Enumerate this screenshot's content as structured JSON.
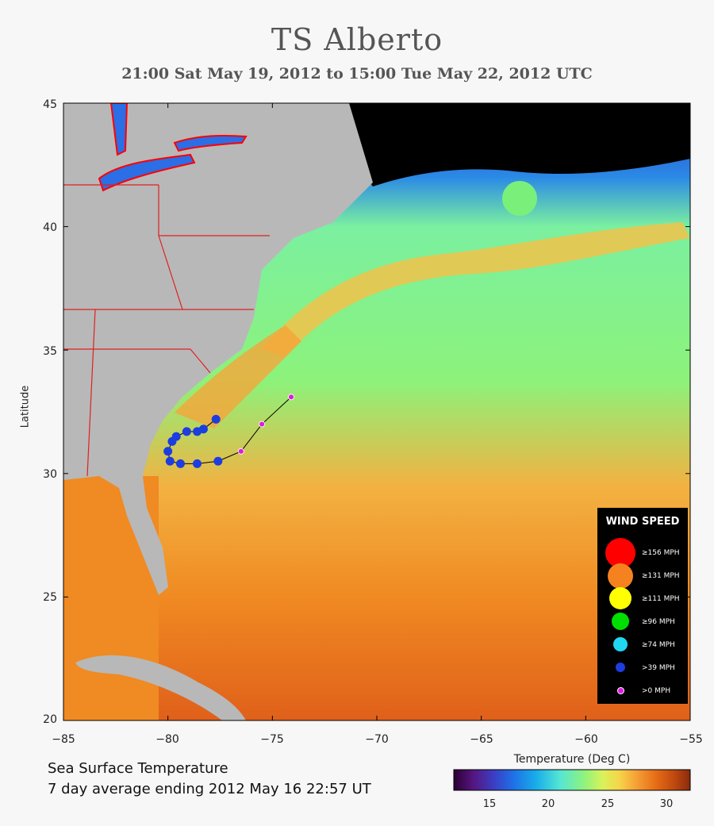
{
  "title": "TS Alberto",
  "subtitle": "21:00 Sat May 19, 2012 to 15:00 Tue May 22, 2012  UTC",
  "axes": {
    "y_label": "Latitude",
    "y_ticks": [
      "45",
      "40",
      "35",
      "30",
      "25",
      "20"
    ],
    "x_ticks": [
      "−85",
      "−80",
      "−75",
      "−70",
      "−65",
      "−60",
      "−55"
    ],
    "lon_range": [
      -85,
      -55
    ],
    "lat_range": [
      20,
      45
    ]
  },
  "footer": {
    "line1": "Sea Surface Temperature",
    "line2": "7 day average ending 2012 May 16 22:57 UT"
  },
  "colorbar": {
    "title": "Temperature (Deg C)",
    "ticks": [
      "15",
      "20",
      "25",
      "30"
    ],
    "tick_values": [
      15,
      20,
      25,
      30
    ],
    "range": [
      12,
      32
    ],
    "colors": [
      "#2a0033",
      "#55157e",
      "#3b3ec4",
      "#1f6fe6",
      "#19aeea",
      "#55e6d4",
      "#8ef27e",
      "#d9f25a",
      "#f6d44a",
      "#f59b33",
      "#e46a14",
      "#c04a10",
      "#8a2b0c"
    ]
  },
  "legend": {
    "title": "WIND SPEED",
    "items": [
      {
        "label": "≥156 MPH",
        "color": "#ff0000"
      },
      {
        "label": "≥131 MPH",
        "color": "#f5821f"
      },
      {
        "label": "≥111 MPH",
        "color": "#ffff00"
      },
      {
        "label": "≥96 MPH",
        "color": "#00e000"
      },
      {
        "label": "≥74 MPH",
        "color": "#1fd7f0"
      },
      {
        "label": ">39 MPH",
        "color": "#1c3de0"
      },
      {
        "label": ">0 MPH",
        "color": "#e019e0"
      }
    ]
  },
  "track": [
    {
      "lon": -74.1,
      "lat": 33.1,
      "cat": ">0 MPH"
    },
    {
      "lon": -75.5,
      "lat": 32.0,
      "cat": ">0 MPH"
    },
    {
      "lon": -76.5,
      "lat": 30.9,
      "cat": ">0 MPH"
    },
    {
      "lon": -77.6,
      "lat": 30.5,
      "cat": ">39 MPH"
    },
    {
      "lon": -78.6,
      "lat": 30.4,
      "cat": ">39 MPH"
    },
    {
      "lon": -79.4,
      "lat": 30.4,
      "cat": ">39 MPH"
    },
    {
      "lon": -79.9,
      "lat": 30.5,
      "cat": ">39 MPH"
    },
    {
      "lon": -80.0,
      "lat": 30.9,
      "cat": ">39 MPH"
    },
    {
      "lon": -79.8,
      "lat": 31.3,
      "cat": ">39 MPH"
    },
    {
      "lon": -79.6,
      "lat": 31.5,
      "cat": ">39 MPH"
    },
    {
      "lon": -79.1,
      "lat": 31.7,
      "cat": ">39 MPH"
    },
    {
      "lon": -78.6,
      "lat": 31.7,
      "cat": ">39 MPH"
    },
    {
      "lon": -78.3,
      "lat": 31.8,
      "cat": ">39 MPH"
    },
    {
      "lon": -77.7,
      "lat": 32.2,
      "cat": ">39 MPH"
    }
  ],
  "colors": {
    "land": "#b8b8b8",
    "cold_water": "#000000",
    "track_line": "#000000"
  }
}
